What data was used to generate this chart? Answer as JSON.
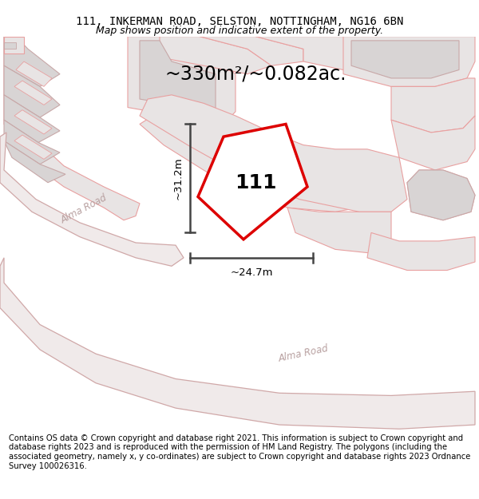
{
  "title_line1": "111, INKERMAN ROAD, SELSTON, NOTTINGHAM, NG16 6BN",
  "title_line2": "Map shows position and indicative extent of the property.",
  "area_label": "~330m²/~0.082ac.",
  "property_number": "111",
  "dim_vertical": "~31.2m",
  "dim_horizontal": "~24.7m",
  "road_label1": "Alma Road",
  "road_label2": "Alma Road",
  "footer_text": "Contains OS data © Crown copyright and database right 2021. This information is subject to Crown copyright and database rights 2023 and is reproduced with the permission of HM Land Registry. The polygons (including the associated geometry, namely x, y co-ordinates) are subject to Crown copyright and database rights 2023 Ordnance Survey 100026316.",
  "bg_color": "#ffffff",
  "map_bg": "#ffffff",
  "parcel_fill": "#e8e4e4",
  "parcel_edge": "#e8a0a0",
  "bldg_fill": "#d8d4d4",
  "bldg_edge": "#c8a8a8",
  "road_fill": "#f0eaea",
  "road_edge": "#d0a8a8",
  "red_plot_color": "#dd0000",
  "dim_color": "#444444",
  "road_text_color": "#b8a0a0",
  "title_fontsize": 10,
  "subtitle_fontsize": 9,
  "area_fontsize": 17,
  "footer_fontsize": 7.2,
  "number_fontsize": 18
}
